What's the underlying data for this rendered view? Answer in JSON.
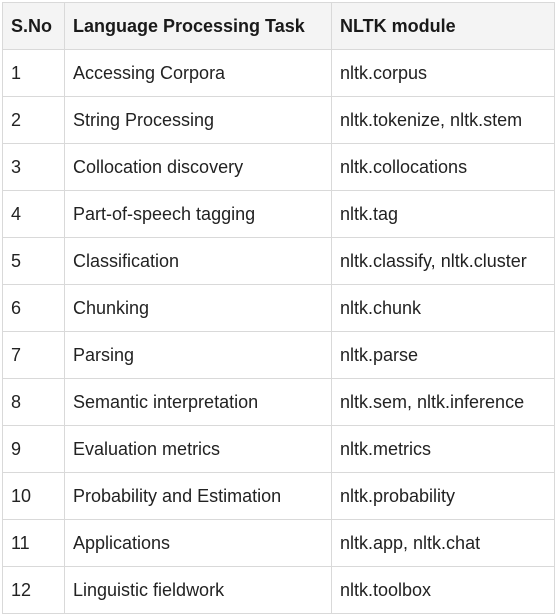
{
  "table": {
    "headers": [
      "S.No",
      "Language Processing Task",
      "NLTK module"
    ],
    "rows": [
      [
        "1",
        "Accessing Corpora",
        "nltk.corpus"
      ],
      [
        "2",
        "String Processing",
        "nltk.tokenize, nltk.stem"
      ],
      [
        "3",
        "Collocation discovery",
        "nltk.collocations"
      ],
      [
        "4",
        "Part-of-speech tagging",
        "nltk.tag"
      ],
      [
        "5",
        "Classification",
        "nltk.classify, nltk.cluster"
      ],
      [
        "6",
        "Chunking",
        "nltk.chunk"
      ],
      [
        "7",
        "Parsing",
        "nltk.parse"
      ],
      [
        "8",
        "Semantic interpretation",
        "nltk.sem, nltk.inference"
      ],
      [
        "9",
        "Evaluation metrics",
        "nltk.metrics"
      ],
      [
        "10",
        "Probability and Estimation",
        "nltk.probability"
      ],
      [
        "11",
        "Applications",
        "nltk.app, nltk.chat"
      ],
      [
        "12",
        "Linguistic fieldwork",
        "nltk.toolbox"
      ]
    ]
  }
}
